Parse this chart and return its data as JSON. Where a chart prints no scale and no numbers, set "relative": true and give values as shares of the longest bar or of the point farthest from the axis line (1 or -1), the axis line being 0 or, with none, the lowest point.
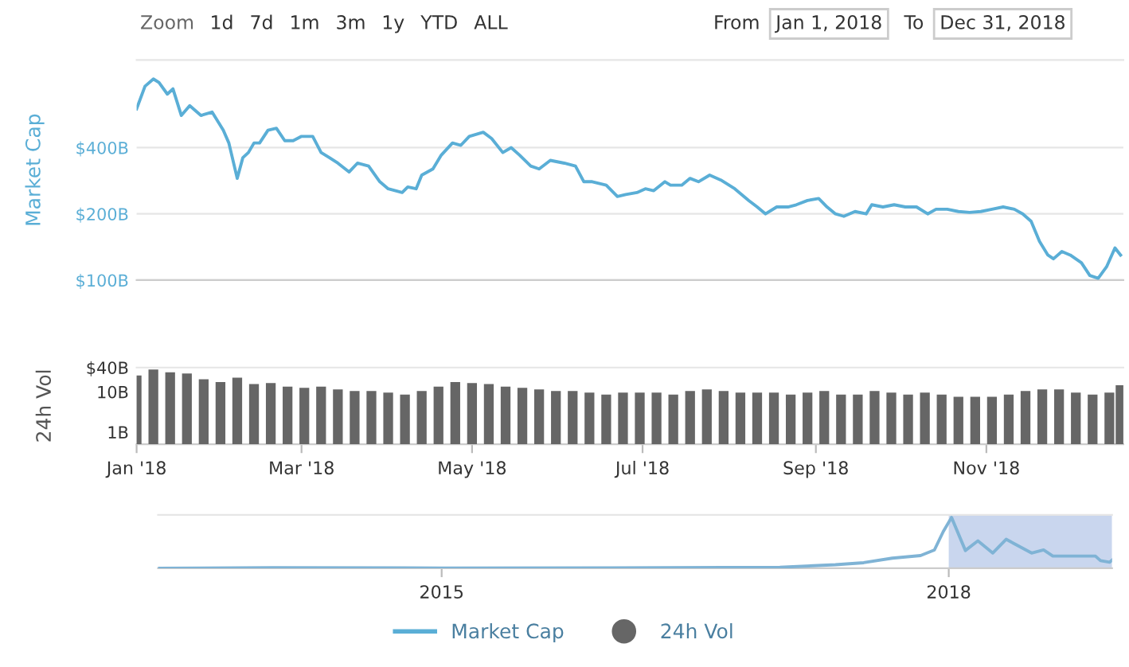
{
  "chart_data": [
    {
      "type": "line",
      "ylabel": "Market Cap",
      "log": true,
      "grid": "y",
      "tick_labels": "y",
      "legend": "bottom",
      "annotations": [
        "Zoom",
        "1d",
        "7d",
        "1m",
        "3m",
        "1y",
        "YTD",
        "ALL",
        "From",
        "Jan 1, 2018",
        "To",
        "Dec 31, 2018"
      ],
      "xlim": [
        "2018-01-01",
        "2018-12-20"
      ],
      "ylim": [
        100,
        1000
      ],
      "yticks": [
        {
          "value": 100,
          "label": "$100B"
        },
        {
          "value": 200,
          "label": "$200B"
        },
        {
          "value": 400,
          "label": "$400B"
        }
      ],
      "series": [
        {
          "name": "Market Cap",
          "color": "#5aaed6",
          "x": [
            "2018-01-01",
            "2018-01-04",
            "2018-01-07",
            "2018-01-09",
            "2018-01-12",
            "2018-01-14",
            "2018-01-17",
            "2018-01-20",
            "2018-01-24",
            "2018-01-28",
            "2018-02-01",
            "2018-02-03",
            "2018-02-06",
            "2018-02-08",
            "2018-02-10",
            "2018-02-12",
            "2018-02-14",
            "2018-02-17",
            "2018-02-20",
            "2018-02-23",
            "2018-02-26",
            "2018-03-01",
            "2018-03-05",
            "2018-03-08",
            "2018-03-11",
            "2018-03-14",
            "2018-03-18",
            "2018-03-21",
            "2018-03-25",
            "2018-03-29",
            "2018-04-01",
            "2018-04-06",
            "2018-04-08",
            "2018-04-11",
            "2018-04-13",
            "2018-04-17",
            "2018-04-20",
            "2018-04-24",
            "2018-04-27",
            "2018-04-30",
            "2018-05-05",
            "2018-05-08",
            "2018-05-12",
            "2018-05-15",
            "2018-05-18",
            "2018-05-22",
            "2018-05-25",
            "2018-05-29",
            "2018-06-03",
            "2018-06-07",
            "2018-06-10",
            "2018-06-13",
            "2018-06-18",
            "2018-06-22",
            "2018-06-25",
            "2018-06-29",
            "2018-07-02",
            "2018-07-05",
            "2018-07-09",
            "2018-07-11",
            "2018-07-15",
            "2018-07-18",
            "2018-07-21",
            "2018-07-25",
            "2018-07-29",
            "2018-08-03",
            "2018-08-08",
            "2018-08-11",
            "2018-08-14",
            "2018-08-18",
            "2018-08-22",
            "2018-08-25",
            "2018-08-29",
            "2018-09-02",
            "2018-09-05",
            "2018-09-08",
            "2018-09-11",
            "2018-09-15",
            "2018-09-19",
            "2018-09-21",
            "2018-09-25",
            "2018-09-29",
            "2018-10-03",
            "2018-10-07",
            "2018-10-11",
            "2018-10-14",
            "2018-10-18",
            "2018-10-22",
            "2018-10-26",
            "2018-10-30",
            "2018-11-03",
            "2018-11-07",
            "2018-11-11",
            "2018-11-14",
            "2018-11-17",
            "2018-11-20",
            "2018-11-23",
            "2018-11-25",
            "2018-11-28",
            "2018-12-01",
            "2018-12-05",
            "2018-12-08",
            "2018-12-11",
            "2018-12-14",
            "2018-12-17",
            "2018-12-19"
          ],
          "values": [
            600,
            760,
            820,
            790,
            700,
            740,
            560,
            620,
            560,
            580,
            480,
            420,
            290,
            360,
            380,
            420,
            420,
            480,
            490,
            430,
            430,
            450,
            450,
            380,
            360,
            340,
            310,
            340,
            330,
            280,
            260,
            250,
            265,
            260,
            300,
            320,
            370,
            420,
            410,
            450,
            470,
            440,
            380,
            400,
            370,
            330,
            320,
            350,
            340,
            330,
            280,
            280,
            270,
            240,
            245,
            250,
            260,
            255,
            280,
            270,
            270,
            290,
            280,
            300,
            285,
            260,
            230,
            215,
            200,
            215,
            215,
            220,
            230,
            235,
            215,
            200,
            195,
            205,
            200,
            220,
            215,
            220,
            215,
            215,
            200,
            210,
            210,
            205,
            203,
            205,
            210,
            215,
            210,
            200,
            185,
            150,
            130,
            125,
            135,
            130,
            120,
            105,
            102,
            115,
            140,
            130
          ]
        }
      ]
    },
    {
      "type": "bar",
      "ylabel": "24h Vol",
      "log": true,
      "legend": "bottom",
      "ylim": [
        0.5,
        40
      ],
      "yticks": [
        {
          "value": 1,
          "label": "1B"
        },
        {
          "value": 10,
          "label": "10B"
        },
        {
          "value": 40,
          "label": "$40B"
        }
      ],
      "xlim": [
        "2018-01-01",
        "2018-12-20"
      ],
      "xticks": [
        {
          "value": "2018-01-01",
          "label": "Jan '18"
        },
        {
          "value": "2018-03-01",
          "label": "Mar '18"
        },
        {
          "value": "2018-05-01",
          "label": "May '18"
        },
        {
          "value": "2018-07-01",
          "label": "Jul '18"
        },
        {
          "value": "2018-09-01",
          "label": "Sep '18"
        },
        {
          "value": "2018-11-01",
          "label": "Nov '18"
        }
      ],
      "series": [
        {
          "name": "24h Vol",
          "color": "#666666",
          "x": [
            "2018-01-01",
            "2018-01-07",
            "2018-01-13",
            "2018-01-19",
            "2018-01-25",
            "2018-01-31",
            "2018-02-06",
            "2018-02-12",
            "2018-02-18",
            "2018-02-24",
            "2018-03-02",
            "2018-03-08",
            "2018-03-14",
            "2018-03-20",
            "2018-03-26",
            "2018-04-01",
            "2018-04-07",
            "2018-04-13",
            "2018-04-19",
            "2018-04-25",
            "2018-05-01",
            "2018-05-07",
            "2018-05-13",
            "2018-05-19",
            "2018-05-25",
            "2018-05-31",
            "2018-06-06",
            "2018-06-12",
            "2018-06-18",
            "2018-06-24",
            "2018-06-30",
            "2018-07-06",
            "2018-07-12",
            "2018-07-18",
            "2018-07-24",
            "2018-07-30",
            "2018-08-05",
            "2018-08-11",
            "2018-08-17",
            "2018-08-23",
            "2018-08-29",
            "2018-09-04",
            "2018-09-10",
            "2018-09-16",
            "2018-09-22",
            "2018-09-28",
            "2018-10-04",
            "2018-10-10",
            "2018-10-16",
            "2018-10-22",
            "2018-10-28",
            "2018-11-03",
            "2018-11-09",
            "2018-11-15",
            "2018-11-21",
            "2018-11-27",
            "2018-12-03",
            "2018-12-09",
            "2018-12-15",
            "2018-12-19"
          ],
          "values": [
            25,
            35,
            30,
            28,
            20,
            17,
            22,
            15,
            16,
            13,
            12,
            13,
            11,
            10,
            10,
            9,
            8,
            10,
            13,
            17,
            16,
            15,
            13,
            12,
            11,
            10,
            10,
            9,
            8,
            9,
            9,
            9,
            8,
            10,
            11,
            10,
            9,
            9,
            9,
            8,
            9,
            10,
            8,
            8,
            10,
            9,
            8,
            9,
            8,
            7,
            7,
            7,
            8,
            10,
            11,
            11,
            9,
            8,
            9,
            14
          ]
        }
      ]
    },
    {
      "type": "line",
      "relative": true,
      "tick_labels": "x",
      "xlim": [
        "2013-04-28",
        "2018-12-20"
      ],
      "xticks": [
        {
          "value": "2015-01-01",
          "label": "2015"
        },
        {
          "value": "2018-01-01",
          "label": "2018"
        }
      ],
      "bands": [
        {
          "axis": "x",
          "from": "2018-01-01",
          "to": "2018-12-20",
          "color": "#c9d6ee"
        }
      ],
      "series": [
        {
          "color": "#7fb3d5",
          "x": [
            "2013-04-28",
            "2014-01-01",
            "2015-01-01",
            "2016-01-01",
            "2017-01-01",
            "2017-05-01",
            "2017-07-01",
            "2017-09-01",
            "2017-11-01",
            "2017-12-01",
            "2017-12-20",
            "2018-01-07",
            "2018-02-06",
            "2018-03-05",
            "2018-04-06",
            "2018-05-05",
            "2018-06-29",
            "2018-07-25",
            "2018-08-14",
            "2018-11-14",
            "2018-11-25",
            "2018-12-15",
            "2018-12-20"
          ],
          "values": [
            0.002,
            0.012,
            0.005,
            0.008,
            0.02,
            0.07,
            0.11,
            0.2,
            0.25,
            0.36,
            0.72,
            1,
            0.35,
            0.54,
            0.3,
            0.57,
            0.3,
            0.36,
            0.24,
            0.24,
            0.15,
            0.12,
            0.16
          ]
        }
      ]
    }
  ]
}
